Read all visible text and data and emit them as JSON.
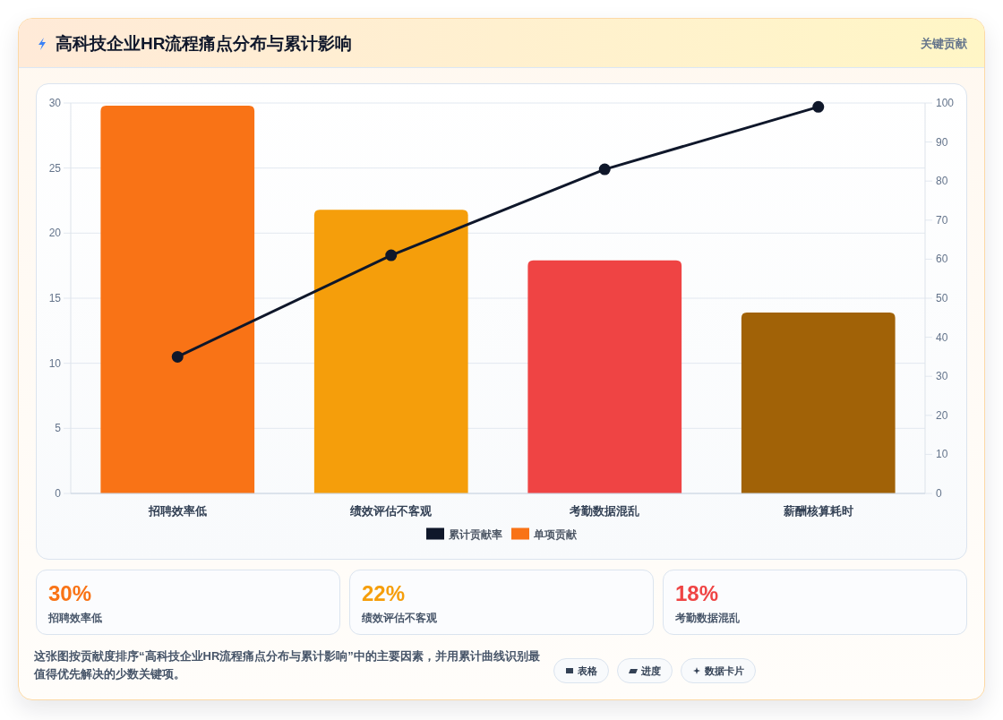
{
  "chart_data": {
    "type": "bar",
    "title": "高科技企业HR流程痛点分布与累计影响",
    "categories": [
      "招聘效率低",
      "绩效评估不客观",
      "考勤数据混乱",
      "薪酬核算耗时"
    ],
    "series": [
      {
        "name": "累计贡献率",
        "type": "line",
        "axis": "y2",
        "color": "#0f172a",
        "values": [
          35,
          61,
          83,
          99
        ]
      },
      {
        "name": "单项贡献",
        "colors": [
          "#f97316",
          "#f59e0b",
          "#ef4444",
          "#a16207"
        ],
        "values": [
          29.8,
          21.8,
          17.9,
          13.9
        ]
      }
    ],
    "ylim": [
      0,
      30
    ],
    "yticks": [
      0,
      5,
      10,
      15,
      20,
      25,
      30
    ],
    "y2lim": [
      0,
      100
    ],
    "y2ticks": [
      0,
      10,
      20,
      30,
      40,
      50,
      60,
      70,
      80,
      90,
      100
    ],
    "grid": "y",
    "legend": "bottom",
    "marker": "circle",
    "annotations": [
      "关键贡献",
      "30%",
      "招聘效率低",
      "22%",
      "绩效评估不客观",
      "18%",
      "考勤数据混乱",
      "这张图按贡献度排序“高科技企业HR流程痛点分布与累计影响”中的主要因素，并用累计曲线识别最值得优先解决的少数关键项。",
      "表格",
      "进度",
      "数据卡片"
    ]
  }
}
